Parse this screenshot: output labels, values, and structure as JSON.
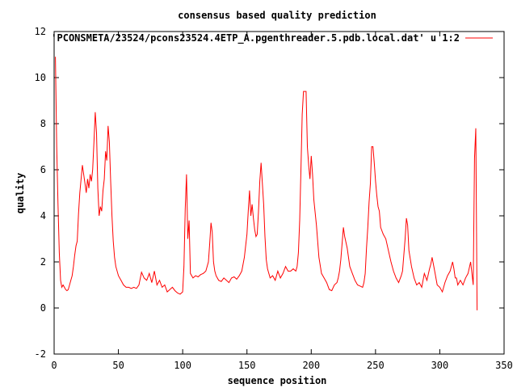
{
  "chart_data": {
    "type": "line",
    "title": "consensus based quality prediction",
    "xlabel": "sequence position",
    "ylabel": "quality",
    "xlim": [
      0,
      350
    ],
    "ylim": [
      -2,
      12
    ],
    "grid": false,
    "legend_position": "top-right",
    "x_ticks": [
      "0",
      "50",
      "100",
      "150",
      "200",
      "250",
      "300",
      "350"
    ],
    "y_ticks": [
      "-2",
      "0",
      "2",
      "4",
      "6",
      "8",
      "10",
      "12"
    ],
    "series": [
      {
        "name": "'PCONSMETA/23524/pcons23524.4ETP_A.pgenthreader.5.pdb.local.dat' u 1:2",
        "color": "#ff0000",
        "x": [
          1,
          2,
          3,
          4,
          5,
          6,
          7,
          8,
          9,
          10,
          11,
          12,
          13,
          14,
          15,
          16,
          17,
          18,
          19,
          20,
          21,
          22,
          23,
          24,
          25,
          26,
          27,
          28,
          29,
          30,
          31,
          32,
          33,
          34,
          35,
          36,
          37,
          38,
          39,
          40,
          41,
          42,
          43,
          44,
          45,
          46,
          47,
          48,
          50,
          52,
          54,
          56,
          58,
          60,
          62,
          64,
          66,
          68,
          70,
          72,
          74,
          76,
          78,
          80,
          82,
          84,
          86,
          88,
          90,
          92,
          94,
          96,
          98,
          100,
          101,
          102,
          103,
          104,
          105,
          106,
          108,
          110,
          112,
          114,
          116,
          118,
          120,
          121,
          122,
          123,
          124,
          125,
          126,
          128,
          130,
          132,
          134,
          136,
          138,
          140,
          142,
          144,
          146,
          148,
          150,
          151,
          152,
          153,
          154,
          155,
          156,
          157,
          158,
          159,
          160,
          161,
          162,
          163,
          164,
          165,
          166,
          168,
          170,
          172,
          174,
          176,
          178,
          180,
          182,
          184,
          186,
          188,
          189,
          190,
          191,
          192,
          193,
          194,
          195,
          196,
          197,
          198,
          199,
          200,
          201,
          202,
          204,
          206,
          208,
          210,
          212,
          214,
          216,
          218,
          220,
          221,
          222,
          223,
          224,
          225,
          226,
          228,
          230,
          232,
          234,
          236,
          238,
          240,
          241,
          242,
          243,
          244,
          245,
          246,
          247,
          248,
          249,
          250,
          251,
          252,
          253,
          254,
          256,
          258,
          260,
          262,
          264,
          266,
          268,
          270,
          271,
          272,
          273,
          274,
          275,
          276,
          278,
          280,
          282,
          284,
          286,
          288,
          290,
          292,
          293,
          294,
          295,
          296,
          298,
          300,
          302,
          304,
          306,
          308,
          310,
          311,
          312,
          313,
          314,
          316,
          318,
          320,
          322,
          324,
          326,
          327,
          328,
          329
        ],
        "y": [
          10.9,
          7.0,
          4.5,
          2.4,
          1.2,
          0.9,
          1.0,
          0.9,
          0.8,
          0.75,
          0.8,
          1.0,
          1.2,
          1.4,
          1.8,
          2.3,
          2.7,
          2.9,
          4.1,
          5.0,
          5.6,
          6.2,
          5.8,
          5.4,
          5.0,
          5.6,
          5.2,
          5.8,
          5.5,
          6.0,
          7.2,
          8.5,
          7.6,
          5.2,
          4.0,
          4.4,
          4.2,
          5.1,
          5.6,
          6.8,
          6.4,
          7.9,
          7.2,
          5.5,
          4.0,
          2.9,
          2.2,
          1.8,
          1.4,
          1.2,
          1.0,
          0.9,
          0.9,
          0.85,
          0.9,
          0.85,
          1.0,
          1.55,
          1.3,
          1.2,
          1.5,
          1.1,
          1.6,
          1.0,
          1.2,
          0.9,
          1.0,
          0.7,
          0.8,
          0.9,
          0.75,
          0.65,
          0.6,
          0.7,
          1.8,
          4.3,
          5.8,
          3.0,
          3.8,
          1.5,
          1.3,
          1.4,
          1.35,
          1.45,
          1.5,
          1.6,
          2.0,
          2.8,
          3.7,
          3.3,
          2.0,
          1.6,
          1.4,
          1.2,
          1.15,
          1.3,
          1.2,
          1.1,
          1.3,
          1.35,
          1.25,
          1.4,
          1.6,
          2.2,
          3.2,
          4.2,
          5.1,
          4.0,
          4.5,
          3.9,
          3.4,
          3.1,
          3.2,
          4.2,
          5.5,
          6.3,
          5.4,
          4.5,
          3.1,
          2.1,
          1.7,
          1.3,
          1.4,
          1.2,
          1.6,
          1.3,
          1.5,
          1.8,
          1.6,
          1.6,
          1.7,
          1.6,
          1.8,
          2.4,
          3.8,
          6.1,
          8.4,
          9.4,
          9.4,
          9.4,
          7.0,
          6.2,
          5.6,
          6.6,
          5.8,
          4.7,
          3.6,
          2.2,
          1.5,
          1.3,
          1.1,
          0.8,
          0.75,
          1.0,
          1.1,
          1.3,
          1.6,
          2.1,
          2.8,
          3.5,
          3.1,
          2.6,
          1.8,
          1.5,
          1.2,
          1.0,
          0.95,
          0.9,
          1.1,
          1.5,
          2.6,
          3.5,
          4.6,
          5.4,
          7.0,
          7.0,
          6.3,
          5.5,
          4.9,
          4.4,
          4.2,
          3.5,
          3.2,
          3.0,
          2.5,
          2.0,
          1.6,
          1.3,
          1.1,
          1.4,
          1.6,
          2.3,
          3.0,
          3.9,
          3.6,
          2.5,
          1.8,
          1.3,
          1.0,
          1.1,
          0.9,
          1.5,
          1.2,
          1.7,
          1.9,
          2.2,
          1.9,
          1.6,
          1.0,
          0.9,
          0.7,
          1.1,
          1.4,
          1.6,
          2.0,
          1.7,
          1.3,
          1.3,
          1.0,
          1.2,
          1.0,
          1.3,
          1.5,
          2.0,
          1.0,
          6.5,
          7.8,
          -0.1
        ]
      }
    ]
  }
}
